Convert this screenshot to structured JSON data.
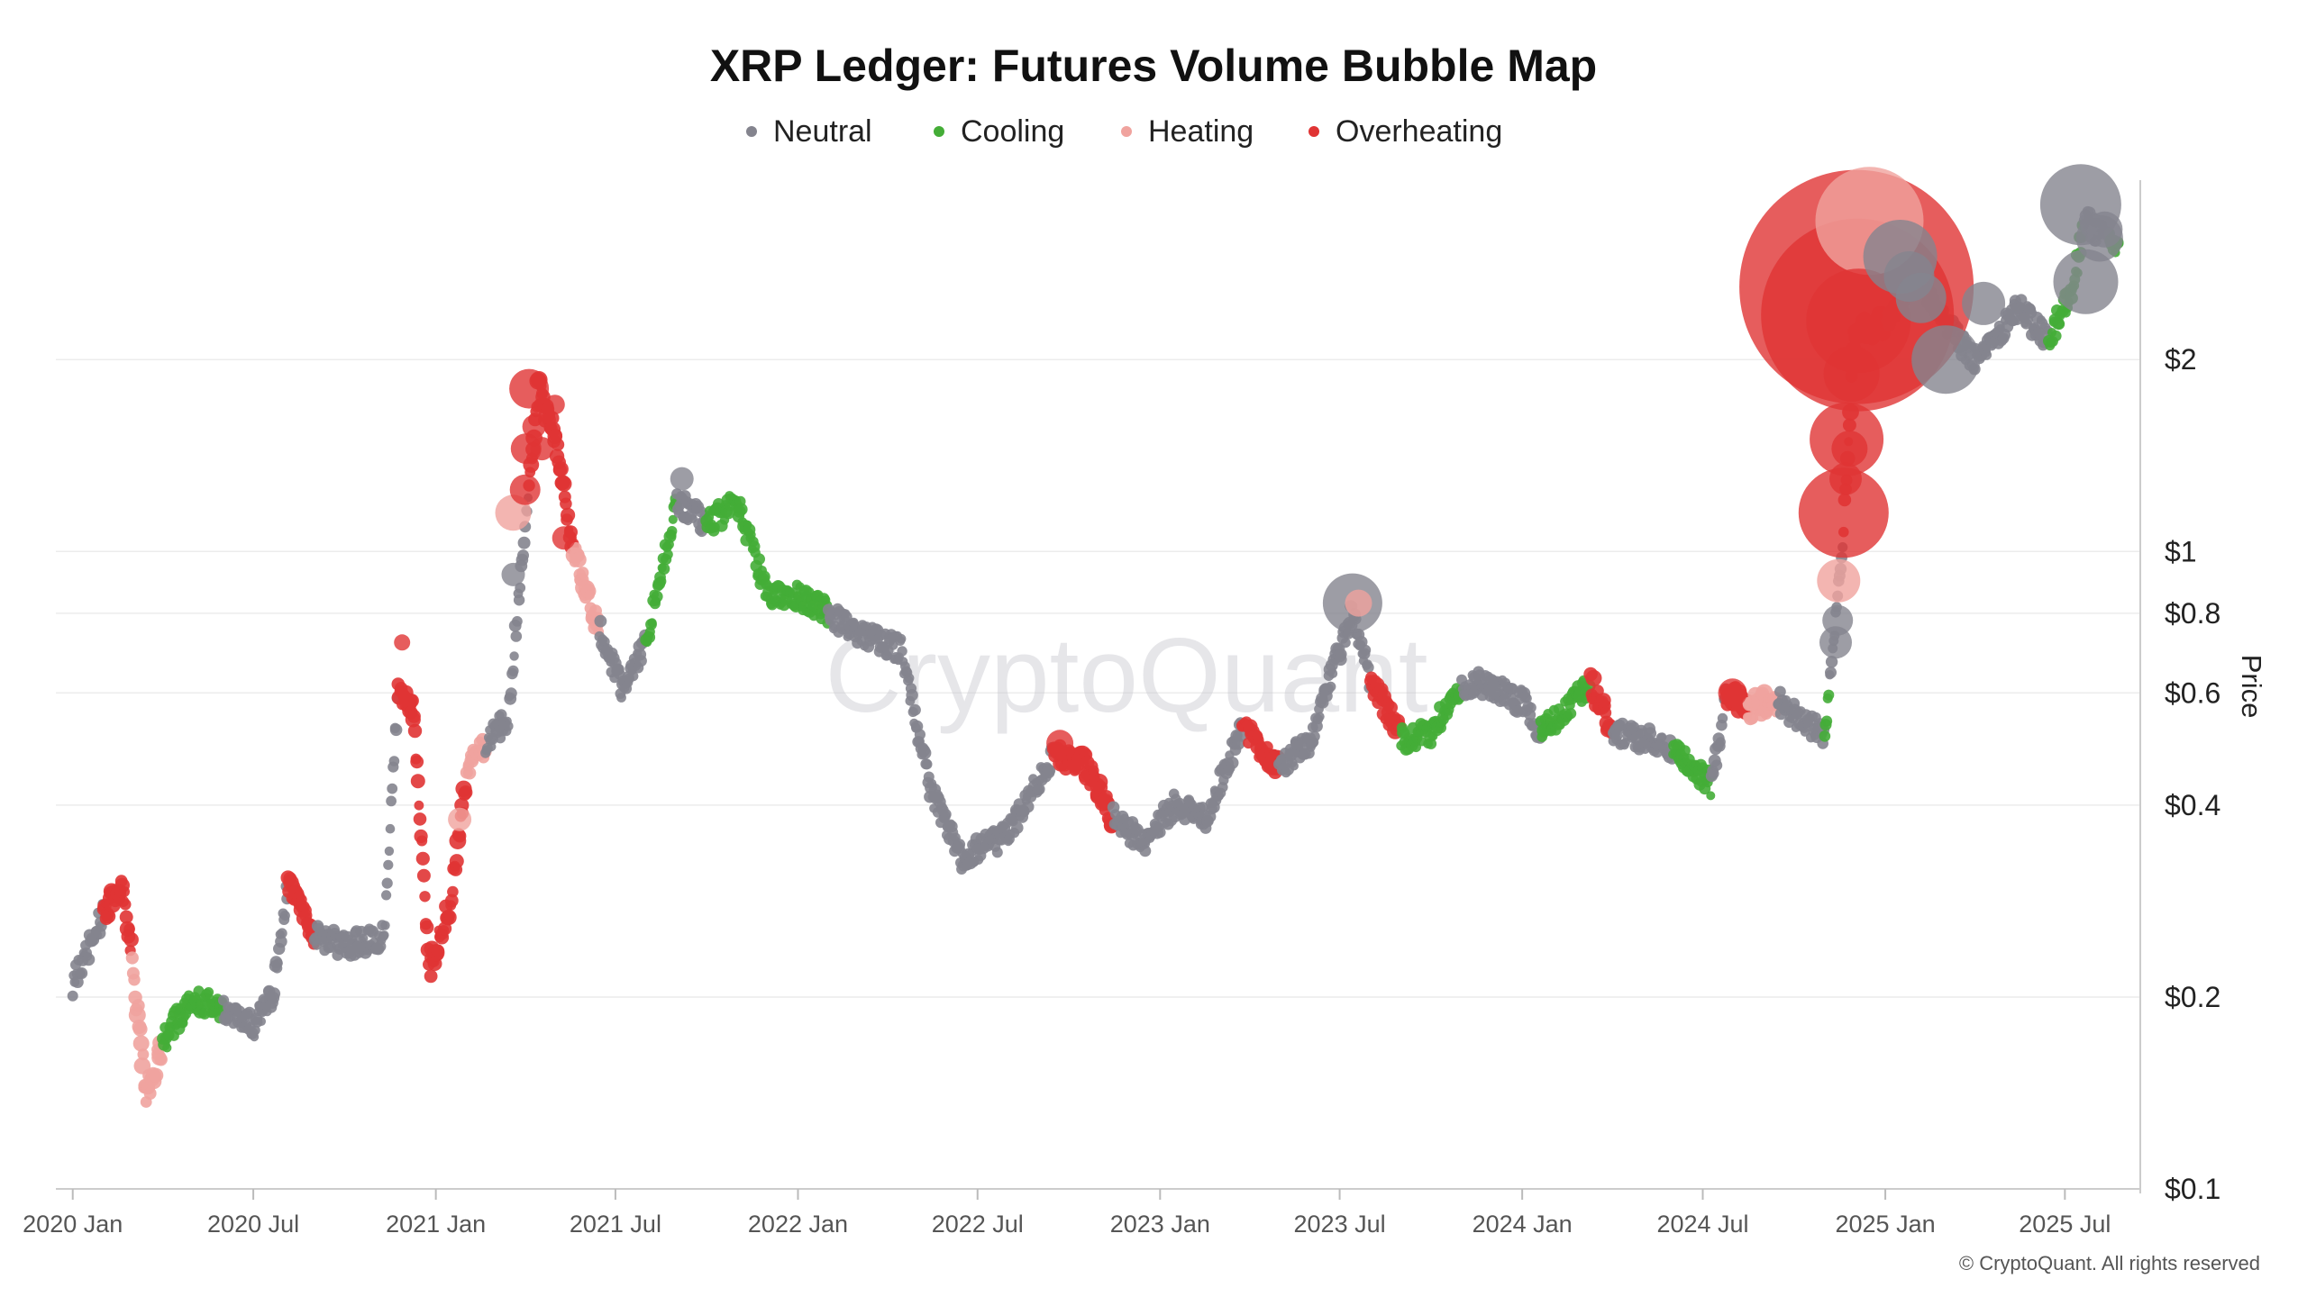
{
  "chart_data": {
    "type": "scatter",
    "title": "XRP Ledger: Futures Volume Bubble Map",
    "ylabel": "Price",
    "xlabel": "",
    "y_scale": "log",
    "ylim": [
      0.1,
      4.5
    ],
    "y_ticks": [
      {
        "value": 2,
        "label": "$2"
      },
      {
        "value": 1,
        "label": "$1"
      },
      {
        "value": 0.8,
        "label": "$0.8"
      },
      {
        "value": 0.6,
        "label": "$0.6"
      },
      {
        "value": 0.4,
        "label": "$0.4"
      },
      {
        "value": 0.2,
        "label": "$0.2"
      },
      {
        "value": 0.1,
        "label": "$0.1"
      }
    ],
    "x_range": [
      "2019-12-15",
      "2025-09-15"
    ],
    "x_ticks": [
      {
        "value": "2020-01-01",
        "label": "2020 Jan"
      },
      {
        "value": "2020-07-01",
        "label": "2020 Jul"
      },
      {
        "value": "2021-01-01",
        "label": "2021 Jan"
      },
      {
        "value": "2021-07-01",
        "label": "2021 Jul"
      },
      {
        "value": "2022-01-01",
        "label": "2022 Jan"
      },
      {
        "value": "2022-07-01",
        "label": "2022 Jul"
      },
      {
        "value": "2023-01-01",
        "label": "2023 Jan"
      },
      {
        "value": "2023-07-01",
        "label": "2023 Jul"
      },
      {
        "value": "2024-01-01",
        "label": "2024 Jan"
      },
      {
        "value": "2024-07-01",
        "label": "2024 Jul"
      },
      {
        "value": "2025-01-01",
        "label": "2025 Jan"
      },
      {
        "value": "2025-07-01",
        "label": "2025 Jul"
      }
    ],
    "legend_position": "top-center",
    "grid": true,
    "series": [
      {
        "name": "Neutral",
        "color": "#84848e"
      },
      {
        "name": "Cooling",
        "color": "#44ad37"
      },
      {
        "name": "Heating",
        "color": "#f0a39e"
      },
      {
        "name": "Overheating",
        "color": "#e03434"
      }
    ],
    "price_path": [
      [
        "2020-01-01",
        0.21,
        0
      ],
      [
        "2020-02-01",
        0.27,
        3
      ],
      [
        "2020-02-20",
        0.3,
        3
      ],
      [
        "2020-03-01",
        0.23,
        2
      ],
      [
        "2020-03-15",
        0.14,
        2
      ],
      [
        "2020-04-01",
        0.17,
        1
      ],
      [
        "2020-05-01",
        0.2,
        1
      ],
      [
        "2020-06-01",
        0.19,
        0
      ],
      [
        "2020-07-01",
        0.18,
        0
      ],
      [
        "2020-07-20",
        0.2,
        0
      ],
      [
        "2020-08-05",
        0.3,
        3
      ],
      [
        "2020-09-01",
        0.25,
        0
      ],
      [
        "2020-10-01",
        0.24,
        0
      ],
      [
        "2020-11-10",
        0.25,
        0
      ],
      [
        "2020-11-24",
        0.62,
        3
      ],
      [
        "2020-12-10",
        0.55,
        3
      ],
      [
        "2020-12-25",
        0.22,
        3
      ],
      [
        "2021-01-15",
        0.28,
        3
      ],
      [
        "2021-02-01",
        0.45,
        2
      ],
      [
        "2021-02-20",
        0.5,
        0
      ],
      [
        "2021-03-15",
        0.55,
        0
      ],
      [
        "2021-04-05",
        1.3,
        3
      ],
      [
        "2021-04-14",
        1.8,
        3
      ],
      [
        "2021-05-01",
        1.5,
        3
      ],
      [
        "2021-05-20",
        1.0,
        2
      ],
      [
        "2021-06-15",
        0.75,
        0
      ],
      [
        "2021-07-10",
        0.6,
        0
      ],
      [
        "2021-08-01",
        0.72,
        1
      ],
      [
        "2021-09-01",
        1.2,
        0
      ],
      [
        "2021-10-01",
        1.1,
        1
      ],
      [
        "2021-11-01",
        1.2,
        1
      ],
      [
        "2021-12-01",
        0.85,
        1
      ],
      [
        "2022-01-01",
        0.85,
        1
      ],
      [
        "2022-02-01",
        0.8,
        0
      ],
      [
        "2022-03-01",
        0.75,
        0
      ],
      [
        "2022-04-15",
        0.7,
        0
      ],
      [
        "2022-05-15",
        0.42,
        0
      ],
      [
        "2022-06-15",
        0.33,
        0
      ],
      [
        "2022-08-01",
        0.36,
        0
      ],
      [
        "2022-09-15",
        0.48,
        3
      ],
      [
        "2022-10-15",
        0.47,
        3
      ],
      [
        "2022-11-15",
        0.38,
        0
      ],
      [
        "2022-12-15",
        0.35,
        0
      ],
      [
        "2023-01-15",
        0.4,
        0
      ],
      [
        "2023-02-15",
        0.38,
        0
      ],
      [
        "2023-03-25",
        0.53,
        3
      ],
      [
        "2023-05-01",
        0.46,
        0
      ],
      [
        "2023-06-01",
        0.5,
        0
      ],
      [
        "2023-07-13",
        0.8,
        0
      ],
      [
        "2023-08-01",
        0.63,
        3
      ],
      [
        "2023-09-01",
        0.51,
        1
      ],
      [
        "2023-10-01",
        0.52,
        1
      ],
      [
        "2023-11-01",
        0.62,
        0
      ],
      [
        "2023-12-01",
        0.62,
        0
      ],
      [
        "2024-01-01",
        0.58,
        0
      ],
      [
        "2024-01-20",
        0.52,
        1
      ],
      [
        "2024-03-10",
        0.62,
        3
      ],
      [
        "2024-04-01",
        0.52,
        0
      ],
      [
        "2024-05-01",
        0.51,
        0
      ],
      [
        "2024-06-01",
        0.49,
        1
      ],
      [
        "2024-07-10",
        0.43,
        0
      ],
      [
        "2024-07-25",
        0.6,
        3
      ],
      [
        "2024-08-15",
        0.57,
        2
      ],
      [
        "2024-09-15",
        0.58,
        0
      ],
      [
        "2024-10-15",
        0.53,
        0
      ],
      [
        "2024-11-01",
        0.52,
        1
      ],
      [
        "2024-11-06",
        0.62,
        0
      ],
      [
        "2024-11-12",
        0.8,
        0
      ],
      [
        "2024-11-20",
        1.1,
        3
      ],
      [
        "2024-12-01",
        2.2,
        3
      ],
      [
        "2025-01-01",
        2.3,
        0
      ],
      [
        "2025-02-01",
        2.7,
        0
      ],
      [
        "2025-03-01",
        2.3,
        0
      ],
      [
        "2025-04-01",
        2.0,
        0
      ],
      [
        "2025-05-15",
        2.4,
        0
      ],
      [
        "2025-06-15",
        2.15,
        1
      ],
      [
        "2025-07-10",
        2.6,
        1
      ],
      [
        "2025-07-20",
        3.3,
        0
      ],
      [
        "2025-08-15",
        3.1,
        1
      ],
      [
        "2025-08-25",
        3.0,
        1
      ]
    ],
    "bubbles": [
      {
        "date": "2021-03-20",
        "price": 0.92,
        "size": 13,
        "state": "Neutral"
      },
      {
        "date": "2021-03-20",
        "price": 1.15,
        "size": 20,
        "state": "Heating"
      },
      {
        "date": "2021-04-01",
        "price": 1.25,
        "size": 17,
        "state": "Overheating"
      },
      {
        "date": "2021-04-05",
        "price": 1.8,
        "size": 22,
        "state": "Overheating"
      },
      {
        "date": "2021-04-02",
        "price": 1.45,
        "size": 17,
        "state": "Overheating"
      },
      {
        "date": "2021-04-10",
        "price": 1.57,
        "size": 13,
        "state": "Overheating"
      },
      {
        "date": "2021-04-18",
        "price": 1.45,
        "size": 13,
        "state": "Overheating"
      },
      {
        "date": "2021-05-01",
        "price": 1.7,
        "size": 11,
        "state": "Overheating"
      },
      {
        "date": "2021-05-10",
        "price": 1.05,
        "size": 13,
        "state": "Overheating"
      },
      {
        "date": "2021-01-25",
        "price": 0.38,
        "size": 13,
        "state": "Heating"
      },
      {
        "date": "2020-11-28",
        "price": 0.72,
        "size": 9,
        "state": "Overheating"
      },
      {
        "date": "2021-09-06",
        "price": 1.3,
        "size": 13,
        "state": "Neutral"
      },
      {
        "date": "2022-09-22",
        "price": 0.5,
        "size": 15,
        "state": "Overheating"
      },
      {
        "date": "2023-07-14",
        "price": 0.83,
        "size": 33,
        "state": "Neutral"
      },
      {
        "date": "2023-07-20",
        "price": 0.83,
        "size": 15,
        "state": "Heating"
      },
      {
        "date": "2024-07-31",
        "price": 0.6,
        "size": 16,
        "state": "Overheating"
      },
      {
        "date": "2024-11-12",
        "price": 0.72,
        "size": 18,
        "state": "Neutral"
      },
      {
        "date": "2024-11-14",
        "price": 0.78,
        "size": 17,
        "state": "Neutral"
      },
      {
        "date": "2024-11-15",
        "price": 0.9,
        "size": 24,
        "state": "Heating"
      },
      {
        "date": "2024-11-20",
        "price": 1.15,
        "size": 50,
        "state": "Overheating"
      },
      {
        "date": "2024-11-22",
        "price": 1.3,
        "size": 18,
        "state": "Overheating"
      },
      {
        "date": "2024-11-23",
        "price": 1.5,
        "size": 41,
        "state": "Overheating"
      },
      {
        "date": "2024-11-26",
        "price": 1.45,
        "size": 20,
        "state": "Overheating"
      },
      {
        "date": "2024-11-28",
        "price": 1.9,
        "size": 31,
        "state": "Overheating"
      },
      {
        "date": "2024-12-03",
        "price": 2.6,
        "size": 130,
        "state": "Overheating"
      },
      {
        "date": "2024-12-04",
        "price": 2.35,
        "size": 107,
        "state": "Overheating"
      },
      {
        "date": "2024-12-05",
        "price": 2.3,
        "size": 58,
        "state": "Overheating"
      },
      {
        "date": "2024-12-16",
        "price": 3.3,
        "size": 60,
        "state": "Heating"
      },
      {
        "date": "2025-01-16",
        "price": 2.9,
        "size": 41,
        "state": "Neutral"
      },
      {
        "date": "2025-01-25",
        "price": 2.7,
        "size": 28,
        "state": "Neutral"
      },
      {
        "date": "2025-02-06",
        "price": 2.5,
        "size": 28,
        "state": "Neutral"
      },
      {
        "date": "2025-03-03",
        "price": 2.0,
        "size": 38,
        "state": "Neutral"
      },
      {
        "date": "2025-04-10",
        "price": 2.45,
        "size": 24,
        "state": "Neutral"
      },
      {
        "date": "2025-07-17",
        "price": 3.5,
        "size": 45,
        "state": "Neutral"
      },
      {
        "date": "2025-07-22",
        "price": 2.65,
        "size": 36,
        "state": "Neutral"
      },
      {
        "date": "2025-08-05",
        "price": 3.1,
        "size": 26,
        "state": "Neutral"
      },
      {
        "date": "2025-08-10",
        "price": 3.2,
        "size": 20,
        "state": "Neutral"
      }
    ]
  },
  "watermark": "CryptoQuant",
  "credit": "© CryptoQuant. All rights reserved"
}
